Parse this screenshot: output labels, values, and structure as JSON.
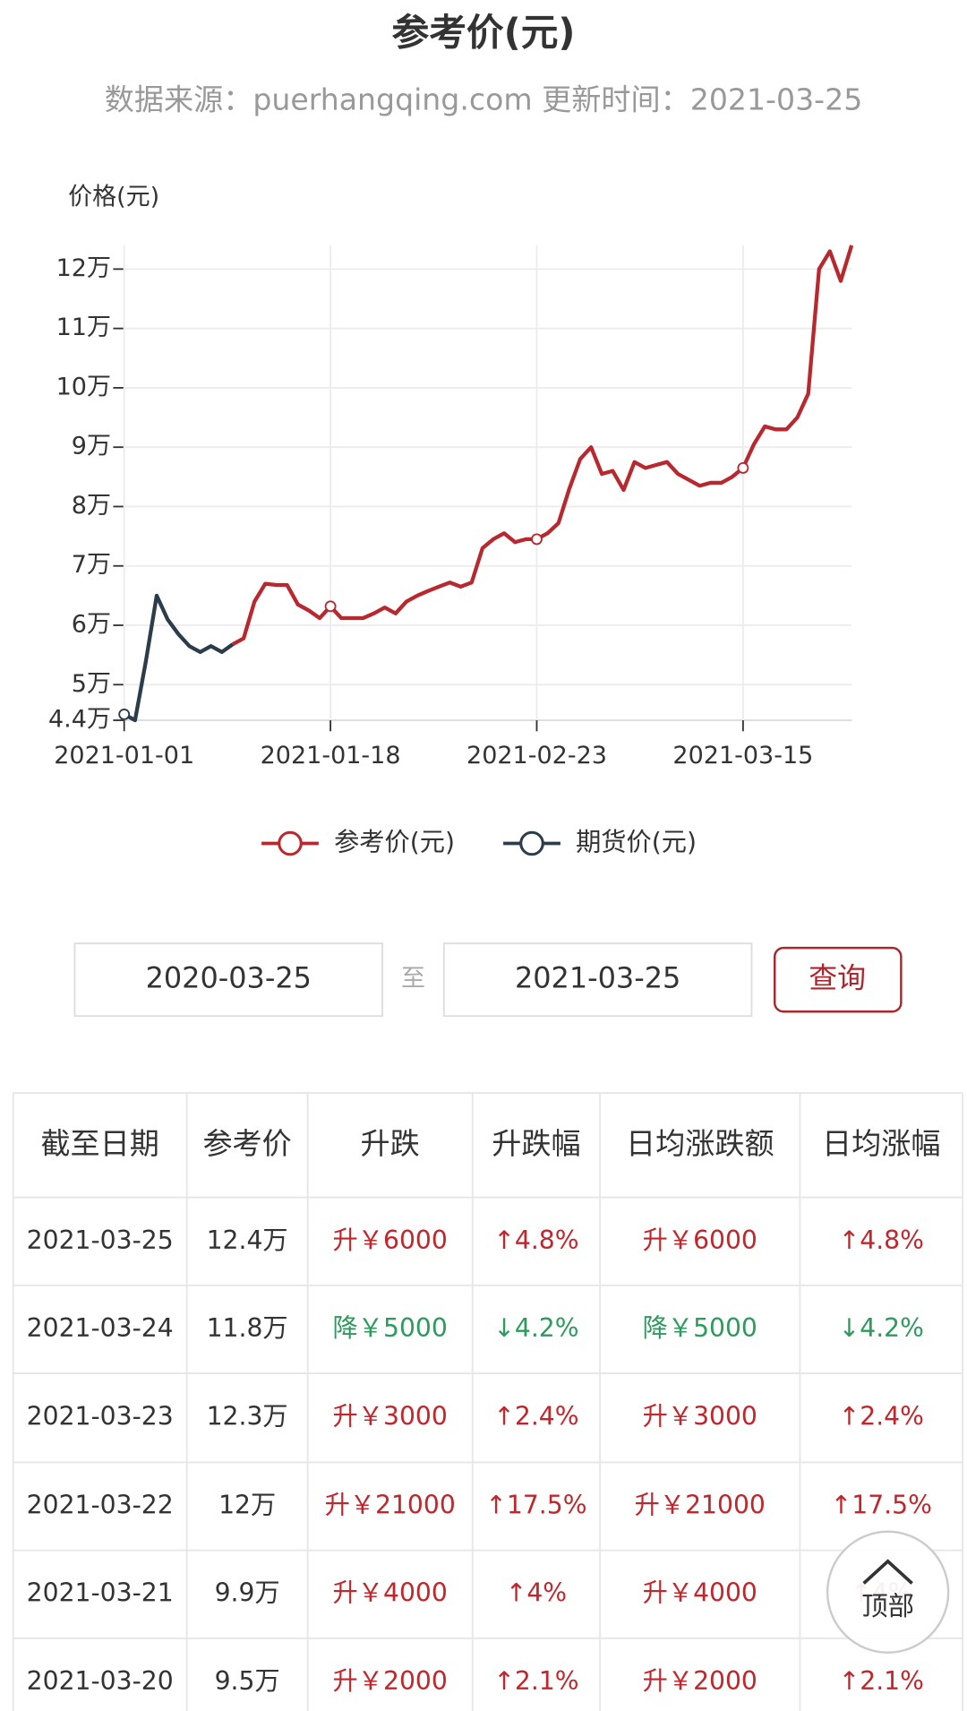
{
  "chart_data": {
    "type": "line",
    "title": "参考价(元)",
    "subtitle": "数据来源：puerhangqing.com 更新时间：2021-03-25",
    "y_label": "价格(元)",
    "categories": [
      "2021-01-01",
      null,
      null,
      null,
      null,
      null,
      null,
      null,
      null,
      null,
      null,
      null,
      null,
      null,
      null,
      null,
      null,
      null,
      null,
      "2021-01-18",
      null,
      null,
      null,
      null,
      null,
      null,
      null,
      null,
      null,
      null,
      null,
      null,
      null,
      null,
      null,
      null,
      null,
      null,
      "2021-02-23",
      null,
      null,
      null,
      null,
      null,
      null,
      null,
      null,
      null,
      null,
      null,
      null,
      null,
      null,
      null,
      null,
      null,
      null,
      "2021-03-15",
      null,
      null,
      null,
      null,
      null,
      null,
      null,
      null,
      null,
      null
    ],
    "series": [
      {
        "name": "参考价(元)",
        "color": "#b8292f",
        "values": [
          null,
          null,
          null,
          null,
          null,
          null,
          null,
          null,
          null,
          null,
          56800,
          57800,
          64000,
          67000,
          66800,
          66800,
          63500,
          62500,
          61200,
          63200,
          61200,
          61200,
          61200,
          62000,
          63000,
          62000,
          64000,
          65000,
          65800,
          66500,
          67200,
          66500,
          67200,
          73000,
          74500,
          75500,
          74000,
          74500,
          74500,
          75500,
          77200,
          83000,
          88000,
          90000,
          85500,
          86000,
          82800,
          87500,
          86500,
          87000,
          87500,
          85500,
          84500,
          83500,
          84000,
          84000,
          85000,
          86500,
          90500,
          93500,
          93000,
          93000,
          95000,
          99000,
          120000,
          123000,
          118000,
          124000
        ]
      },
      {
        "name": "期货价(元)",
        "color": "#2b3c4a",
        "values": [
          45000,
          44000,
          54000,
          65000,
          61000,
          58500,
          56500,
          55500,
          56500,
          55500,
          56800,
          null,
          null,
          null,
          null,
          null,
          null,
          null,
          null,
          null,
          null,
          null,
          null,
          null,
          null,
          null,
          null,
          null,
          null,
          null,
          null,
          null,
          null,
          null,
          null,
          null,
          null,
          null,
          null,
          null,
          null,
          null,
          null,
          null,
          null,
          null,
          null,
          null,
          null,
          null,
          null,
          null,
          null,
          null,
          null,
          null,
          null,
          null,
          null,
          null,
          null,
          null,
          null,
          null,
          null,
          null,
          null,
          null
        ]
      }
    ],
    "ylim": [
      44000,
      124000
    ],
    "yticks": [
      {
        "value": 44000,
        "label": "4.4万"
      },
      {
        "value": 50000,
        "label": "5万"
      },
      {
        "value": 60000,
        "label": "6万"
      },
      {
        "value": 70000,
        "label": "7万"
      },
      {
        "value": 80000,
        "label": "8万"
      },
      {
        "value": 90000,
        "label": "9万"
      },
      {
        "value": 100000,
        "label": "10万"
      },
      {
        "value": 110000,
        "label": "11万"
      },
      {
        "value": 120000,
        "label": "12万"
      }
    ],
    "grid": true,
    "legend": "bottom"
  },
  "query": {
    "start": "2020-03-25",
    "separator": "至",
    "end": "2021-03-25",
    "button": "查询"
  },
  "table": {
    "header": [
      "截至日期",
      "参考价",
      "升跌",
      "升跌幅",
      "日均涨跌额",
      "日均涨幅"
    ],
    "rows": [
      {
        "color": "#c0272d",
        "cells": [
          "2021-03-25",
          "12.4万",
          "升￥6000",
          "↑4.8%",
          "升￥6000",
          "↑4.8%"
        ]
      },
      {
        "color": "#2e9a5e",
        "cells": [
          "2021-03-24",
          "11.8万",
          "降￥5000",
          "↓4.2%",
          "降￥5000",
          "↓4.2%"
        ]
      },
      {
        "color": "#c0272d",
        "cells": [
          "2021-03-23",
          "12.3万",
          "升￥3000",
          "↑2.4%",
          "升￥3000",
          "↑2.4%"
        ]
      },
      {
        "color": "#c0272d",
        "cells": [
          "2021-03-22",
          "12万",
          "升￥21000",
          "↑17.5%",
          "升￥21000",
          "↑17.5%"
        ]
      },
      {
        "color": "#c0272d",
        "cells": [
          "2021-03-21",
          "9.9万",
          "升￥4000",
          "↑4%",
          "升￥4000",
          "↑4%"
        ]
      },
      {
        "color": "#c0272d",
        "cells": [
          "2021-03-20",
          "9.5万",
          "升￥2000",
          "↑2.1%",
          "升￥2000",
          "↑2.1%"
        ]
      }
    ]
  },
  "top_button": "顶部"
}
